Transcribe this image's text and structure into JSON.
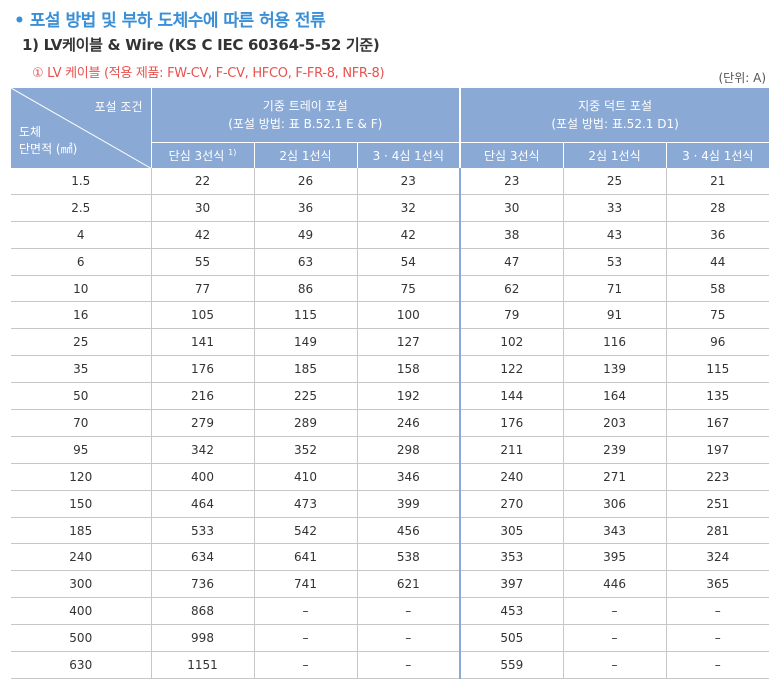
{
  "title": "• 포설 방법 및 부하 도체수에 따른 허용 전류",
  "subtitle": "1) LV케이블 & Wire (KS C IEC 60364-5-52 기준)",
  "note": "① LV 케이블 (적용 제품: FW-CV, F-CV, HFCO, F-FR-8, NFR-8)",
  "unit": "(단위: A)",
  "colors": {
    "title": "#3a8fd6",
    "note": "#e8524f",
    "header_bg": "#8aa9d5"
  },
  "header": {
    "corner_top": "포설 조건",
    "corner_bottom_1": "도체",
    "corner_bottom_2": "단면적 (㎟)",
    "group1_line1": "기중 트레이 포설",
    "group1_line2": "(포설 방법: 표 B.52.1 E & F)",
    "group2_line1": "지중 덕트 포설",
    "group2_line2": "(포설 방법: 표.52.1 D1)",
    "sub": [
      {
        "label": "단심 3선식",
        "sup": "1)"
      },
      {
        "label": "2심 1선식",
        "sup": ""
      },
      {
        "label": "3 · 4심 1선식",
        "sup": ""
      },
      {
        "label": "단심 3선식",
        "sup": ""
      },
      {
        "label": "2심 1선식",
        "sup": ""
      },
      {
        "label": "3 · 4심 1선식",
        "sup": ""
      }
    ]
  },
  "rows": [
    [
      "1.5",
      "22",
      "26",
      "23",
      "23",
      "25",
      "21"
    ],
    [
      "2.5",
      "30",
      "36",
      "32",
      "30",
      "33",
      "28"
    ],
    [
      "4",
      "42",
      "49",
      "42",
      "38",
      "43",
      "36"
    ],
    [
      "6",
      "55",
      "63",
      "54",
      "47",
      "53",
      "44"
    ],
    [
      "10",
      "77",
      "86",
      "75",
      "62",
      "71",
      "58"
    ],
    [
      "16",
      "105",
      "115",
      "100",
      "79",
      "91",
      "75"
    ],
    [
      "25",
      "141",
      "149",
      "127",
      "102",
      "116",
      "96"
    ],
    [
      "35",
      "176",
      "185",
      "158",
      "122",
      "139",
      "115"
    ],
    [
      "50",
      "216",
      "225",
      "192",
      "144",
      "164",
      "135"
    ],
    [
      "70",
      "279",
      "289",
      "246",
      "176",
      "203",
      "167"
    ],
    [
      "95",
      "342",
      "352",
      "298",
      "211",
      "239",
      "197"
    ],
    [
      "120",
      "400",
      "410",
      "346",
      "240",
      "271",
      "223"
    ],
    [
      "150",
      "464",
      "473",
      "399",
      "270",
      "306",
      "251"
    ],
    [
      "185",
      "533",
      "542",
      "456",
      "305",
      "343",
      "281"
    ],
    [
      "240",
      "634",
      "641",
      "538",
      "353",
      "395",
      "324"
    ],
    [
      "300",
      "736",
      "741",
      "621",
      "397",
      "446",
      "365"
    ],
    [
      "400",
      "868",
      "–",
      "–",
      "453",
      "–",
      "–"
    ],
    [
      "500",
      "998",
      "–",
      "–",
      "505",
      "–",
      "–"
    ],
    [
      "630",
      "1151",
      "–",
      "–",
      "559",
      "–",
      "–"
    ]
  ]
}
